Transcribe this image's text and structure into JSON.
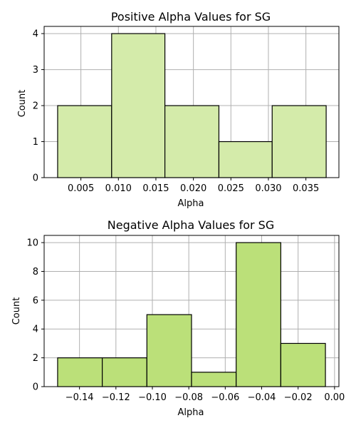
{
  "chart_data": [
    {
      "type": "bar",
      "title": "Positive Alpha Values for SG",
      "xlabel": "Alpha",
      "ylabel": "Count",
      "color": "#d4ebaa",
      "bin_edges": [
        0.0019,
        0.0091,
        0.0162,
        0.0234,
        0.0305,
        0.0377
      ],
      "values": [
        2,
        4,
        2,
        1,
        2
      ],
      "xlim": [
        0.0001,
        0.0394
      ],
      "ylim": [
        0,
        4.2
      ],
      "xticks": [
        0.005,
        0.01,
        0.015,
        0.02,
        0.025,
        0.03,
        0.035
      ],
      "xtick_labels": [
        "0.005",
        "0.010",
        "0.015",
        "0.020",
        "0.025",
        "0.030",
        "0.035"
      ],
      "yticks": [
        0,
        1,
        2,
        3,
        4
      ],
      "ytick_labels": [
        "0",
        "1",
        "2",
        "3",
        "4"
      ],
      "grid": true
    },
    {
      "type": "bar",
      "title": "Negative Alpha Values for SG",
      "xlabel": "Alpha",
      "ylabel": "Count",
      "color": "#bbe079",
      "bin_edges": [
        -0.152,
        -0.1275,
        -0.103,
        -0.0785,
        -0.054,
        -0.0295,
        -0.005
      ],
      "values": [
        2,
        2,
        5,
        1,
        10,
        3
      ],
      "xlim": [
        -0.1594,
        0.0024
      ],
      "ylim": [
        0,
        10.5
      ],
      "xticks": [
        -0.14,
        -0.12,
        -0.1,
        -0.08,
        -0.06,
        -0.04,
        -0.02,
        0.0
      ],
      "xtick_labels": [
        "−0.14",
        "−0.12",
        "−0.10",
        "−0.08",
        "−0.06",
        "−0.04",
        "−0.02",
        "0.00"
      ],
      "yticks": [
        0,
        2,
        4,
        6,
        8,
        10
      ],
      "ytick_labels": [
        "0",
        "2",
        "4",
        "6",
        "8",
        "10"
      ],
      "grid": true
    }
  ]
}
